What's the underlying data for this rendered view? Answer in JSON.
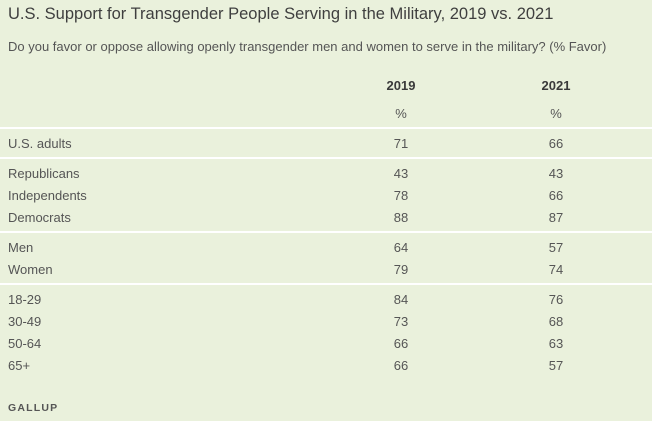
{
  "header": {
    "title": "U.S. Support for Transgender People Serving in the Military, 2019 vs. 2021",
    "subtitle": "Do you favor or oppose allowing openly transgender men and women to serve in the military? (% Favor)"
  },
  "source": "GALLUP",
  "chart_data": {
    "type": "table",
    "columns": [
      "2019",
      "2021"
    ],
    "units": [
      "%",
      "%"
    ],
    "groups": [
      {
        "rows": [
          {
            "label": "U.S. adults",
            "values": [
              71,
              66
            ]
          }
        ]
      },
      {
        "rows": [
          {
            "label": "Republicans",
            "values": [
              43,
              43
            ]
          },
          {
            "label": "Independents",
            "values": [
              78,
              66
            ]
          },
          {
            "label": "Democrats",
            "values": [
              88,
              87
            ]
          }
        ]
      },
      {
        "rows": [
          {
            "label": "Men",
            "values": [
              64,
              57
            ]
          },
          {
            "label": "Women",
            "values": [
              79,
              74
            ]
          }
        ]
      },
      {
        "rows": [
          {
            "label": "18-29",
            "values": [
              84,
              76
            ]
          },
          {
            "label": "30-49",
            "values": [
              73,
              68
            ]
          },
          {
            "label": "50-64",
            "values": [
              66,
              63
            ]
          },
          {
            "label": "65+",
            "values": [
              66,
              57
            ]
          }
        ]
      }
    ]
  }
}
